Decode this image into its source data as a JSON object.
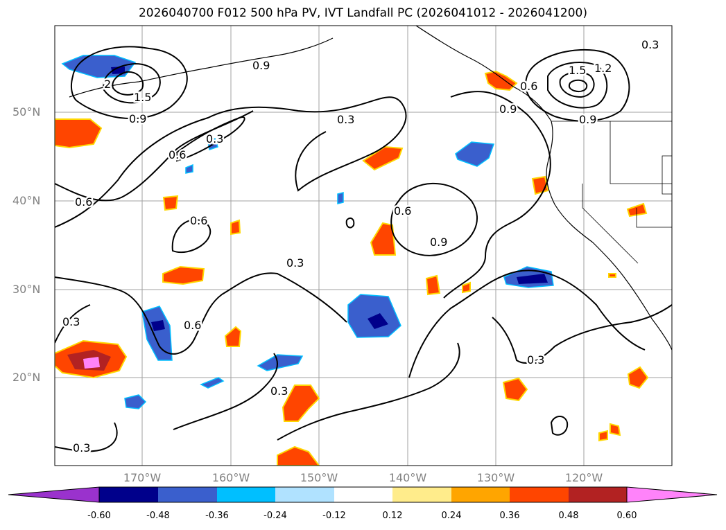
{
  "title": "2026040700 F012 500 hPa PV, IVT Landfall PC (2026041012 - 2026041200)",
  "map": {
    "lat_labels": [
      "50°N",
      "40°N",
      "30°N",
      "20°N"
    ],
    "lon_labels": [
      "170°W",
      "160°W",
      "150°W",
      "140°W",
      "130°W",
      "120°W"
    ],
    "contour_labels": [
      "0.3",
      "0.6",
      "0.9",
      "1.2",
      "1.5",
      "2"
    ],
    "colors": {
      "gridline": "#a0a0a0",
      "contour": "#000000"
    }
  },
  "colorbar": {
    "ticks": [
      "-0.60",
      "-0.48",
      "-0.36",
      "-0.24",
      "-0.12",
      "0.12",
      "0.24",
      "0.36",
      "0.48",
      "0.60"
    ],
    "colors": [
      "#9a32cd",
      "#00008b",
      "#3a5fcd",
      "#00bfff",
      "#b0e2ff",
      "#ffffff",
      "#ffec8b",
      "#ffa500",
      "#ff4500",
      "#b22222",
      "#ff83fa"
    ]
  }
}
